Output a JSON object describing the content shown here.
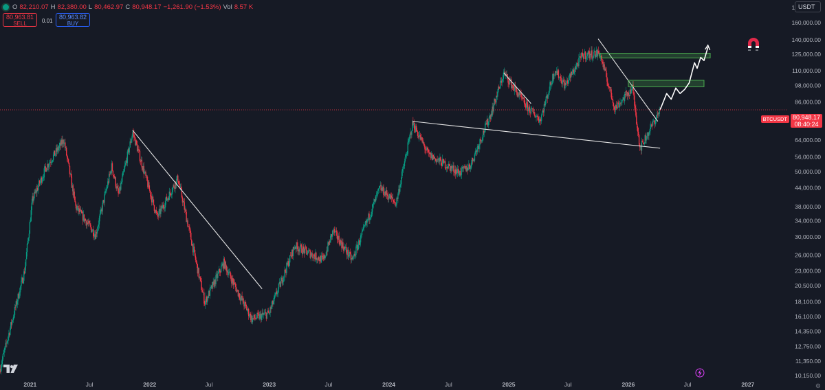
{
  "header": {
    "ohlc": [
      {
        "k": "O",
        "v": "82,210.07"
      },
      {
        "k": "H",
        "v": "82,380.00"
      },
      {
        "k": "L",
        "v": "80,462.97"
      },
      {
        "k": "C",
        "v": "80,948.17"
      }
    ],
    "change": "−1,261.90 (−1.53%)",
    "vol_label": "Vol",
    "vol_value": "8.57 K"
  },
  "trade": {
    "sell_price": "80,963.81",
    "sell_label": "SELL",
    "spread": "0.01",
    "buy_price": "80,963.82",
    "buy_label": "BUY"
  },
  "currency": "USDT",
  "symbol": "BTCUSDT",
  "last_price": "80,948.17",
  "countdown": "08:40:24",
  "colors": {
    "up": "#089981",
    "down": "#f23645",
    "background": "#161a25",
    "zone": "#4caf50"
  },
  "chart_data": {
    "type": "candlestick",
    "yscale": "log",
    "ylim": [
      10100,
      191000
    ],
    "y_tick_labels": [
      "10,150.00",
      "11,350.00",
      "12,750.00",
      "14,350.00",
      "16,100.00",
      "18,100.00",
      "20,500.00",
      "23,000.00",
      "26,000.00",
      "30,000.00",
      "34,000.00",
      "38,000.00",
      "44,000.00",
      "50,000.00",
      "56,000.00",
      "64,000.00",
      "74,000.00",
      "86,000.00",
      "98,000.00",
      "110,000.00",
      "125,000.00",
      "140,000.00",
      "160,000.00",
      "180,000.00"
    ],
    "x_tick_labels": [
      "2021",
      "Jul",
      "2022",
      "Jul",
      "2023",
      "Jul",
      "2024",
      "Jul",
      "2025",
      "Jul",
      "2026",
      "Jul",
      "2027"
    ],
    "xlim": [
      "2020-10-01",
      "2027-05-01"
    ],
    "price_path": [
      [
        "2020-10-01",
        10700
      ],
      [
        "2020-12-15",
        23000
      ],
      [
        "2021-01-08",
        40000
      ],
      [
        "2021-02-20",
        52000
      ],
      [
        "2021-04-14",
        64000
      ],
      [
        "2021-05-20",
        38000
      ],
      [
        "2021-07-20",
        30500
      ],
      [
        "2021-09-07",
        52000
      ],
      [
        "2021-09-28",
        41500
      ],
      [
        "2021-11-10",
        68000
      ],
      [
        "2022-01-24",
        35000
      ],
      [
        "2022-03-28",
        47500
      ],
      [
        "2022-06-18",
        18000
      ],
      [
        "2022-08-15",
        24500
      ],
      [
        "2022-09-30",
        19200
      ],
      [
        "2022-11-09",
        15800
      ],
      [
        "2022-12-31",
        16500
      ],
      [
        "2023-03-20",
        28000
      ],
      [
        "2023-06-15",
        25000
      ],
      [
        "2023-07-15",
        31500
      ],
      [
        "2023-09-11",
        25000
      ],
      [
        "2023-12-05",
        44000
      ],
      [
        "2024-01-23",
        39000
      ],
      [
        "2024-03-14",
        73000
      ],
      [
        "2024-05-01",
        57000
      ],
      [
        "2024-08-05",
        49500
      ],
      [
        "2024-09-06",
        52500
      ],
      [
        "2024-11-10",
        80000
      ],
      [
        "2024-12-17",
        108000
      ],
      [
        "2025-02-25",
        83000
      ],
      [
        "2025-04-07",
        75000
      ],
      [
        "2025-05-22",
        111000
      ],
      [
        "2025-06-22",
        98000
      ],
      [
        "2025-08-14",
        124000
      ],
      [
        "2025-10-06",
        126000
      ],
      [
        "2025-11-21",
        82000
      ],
      [
        "2026-01-14",
        96000
      ],
      [
        "2026-02-06",
        60000
      ],
      [
        "2026-03-10",
        70000
      ],
      [
        "2026-04-08",
        80948
      ]
    ],
    "projection": [
      [
        "2026-04-08",
        80948
      ],
      [
        "2026-04-28",
        92000
      ],
      [
        "2026-05-12",
        88000
      ],
      [
        "2026-05-26",
        96000
      ],
      [
        "2026-06-08",
        92000
      ],
      [
        "2026-06-22",
        95000
      ],
      [
        "2026-07-06",
        100000
      ],
      [
        "2026-07-22",
        117000
      ],
      [
        "2026-07-30",
        112000
      ],
      [
        "2026-08-10",
        122000
      ],
      [
        "2026-08-20",
        119000
      ],
      [
        "2026-09-01",
        132000
      ]
    ],
    "trendlines": [
      {
        "from": [
          "2021-11-10",
          69000
        ],
        "to": [
          "2022-12-10",
          20000
        ]
      },
      {
        "from": [
          "2024-03-14",
          74000
        ],
        "to": [
          "2026-04-08",
          60000
        ]
      },
      {
        "from": [
          "2024-12-17",
          108000
        ],
        "to": [
          "2025-03-10",
          85000
        ]
      },
      {
        "from": [
          "2025-10-01",
          141000
        ],
        "to": [
          "2026-04-01",
          74000
        ]
      }
    ],
    "zones": [
      {
        "from": "2025-10-06",
        "to": "2026-09-08",
        "low": 121500,
        "high": 126000
      },
      {
        "from": "2026-01-01",
        "to": "2026-08-20",
        "low": 97000,
        "high": 102000
      }
    ],
    "last_price": 80948.17
  }
}
